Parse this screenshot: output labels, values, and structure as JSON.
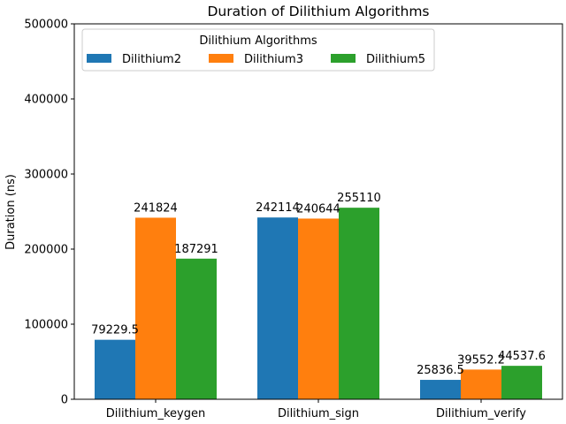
{
  "chart_data": {
    "type": "bar",
    "title": "Duration of Dilithium Algorithms",
    "xlabel": "",
    "ylabel": "Duration (ns)",
    "ylim": [
      0,
      500000
    ],
    "yticks": [
      0,
      100000,
      200000,
      300000,
      400000,
      500000
    ],
    "categories": [
      "Dilithium_keygen",
      "Dilithium_sign",
      "Dilithium_verify"
    ],
    "series": [
      {
        "name": "Dilithium2",
        "color": "#1f77b4",
        "values": [
          79229.5,
          242114,
          25836.5
        ],
        "labels": [
          "79229.5",
          "242114",
          "25836.5"
        ]
      },
      {
        "name": "Dilithium3",
        "color": "#ff7f0e",
        "values": [
          241824,
          240644,
          39552.2
        ],
        "labels": [
          "241824",
          "240644",
          "39552.2"
        ]
      },
      {
        "name": "Dilithium5",
        "color": "#2ca02c",
        "values": [
          187291,
          255110,
          44537.6
        ],
        "labels": [
          "187291",
          "255110",
          "44537.6"
        ]
      }
    ],
    "legend": {
      "title": "Dilithium Algorithms",
      "placement": "top-left"
    },
    "grid": false
  }
}
